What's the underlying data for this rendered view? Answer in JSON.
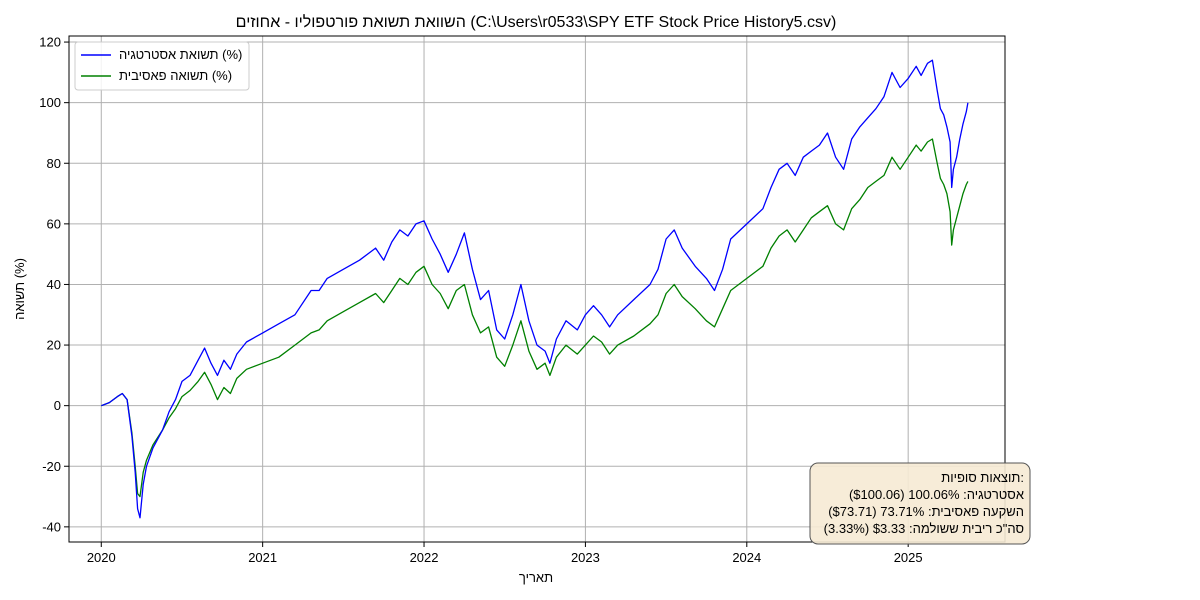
{
  "chart_data": {
    "type": "line",
    "title": "השוואת תשואת פורטפוליו - אחוזים (C:\\Users\\r0533\\SPY ETF Stock Price History5.csv)",
    "xlabel": "תאריך",
    "ylabel": "תשואה (%)",
    "xlim": [
      2019.8,
      2025.6
    ],
    "ylim": [
      -45,
      122
    ],
    "x_ticks": [
      {
        "value": 2020,
        "label": "2020"
      },
      {
        "value": 2021,
        "label": "2021"
      },
      {
        "value": 2022,
        "label": "2022"
      },
      {
        "value": 2023,
        "label": "2023"
      },
      {
        "value": 2024,
        "label": "2024"
      },
      {
        "value": 2025,
        "label": "2025"
      }
    ],
    "y_ticks": [
      {
        "value": -40,
        "label": "-40"
      },
      {
        "value": -20,
        "label": "-20"
      },
      {
        "value": 0,
        "label": "0"
      },
      {
        "value": 20,
        "label": "20"
      },
      {
        "value": 40,
        "label": "40"
      },
      {
        "value": 60,
        "label": "60"
      },
      {
        "value": 80,
        "label": "80"
      },
      {
        "value": 100,
        "label": "100"
      },
      {
        "value": 120,
        "label": "120"
      }
    ],
    "grid": true,
    "legend_position": "top-left",
    "series": [
      {
        "name": "תשואת אסטרטגיה (%)",
        "color": "#0000ff",
        "points": [
          [
            2020.0,
            0
          ],
          [
            2020.05,
            1
          ],
          [
            2020.1,
            3
          ],
          [
            2020.13,
            4
          ],
          [
            2020.16,
            2
          ],
          [
            2020.19,
            -10
          ],
          [
            2020.21,
            -22
          ],
          [
            2020.225,
            -34
          ],
          [
            2020.24,
            -37
          ],
          [
            2020.26,
            -26
          ],
          [
            2020.28,
            -20
          ],
          [
            2020.32,
            -14
          ],
          [
            2020.38,
            -8
          ],
          [
            2020.42,
            -2
          ],
          [
            2020.46,
            2
          ],
          [
            2020.5,
            8
          ],
          [
            2020.55,
            10
          ],
          [
            2020.6,
            15
          ],
          [
            2020.64,
            19
          ],
          [
            2020.68,
            14
          ],
          [
            2020.72,
            10
          ],
          [
            2020.76,
            15
          ],
          [
            2020.8,
            12
          ],
          [
            2020.84,
            17
          ],
          [
            2020.9,
            21
          ],
          [
            2021.0,
            24
          ],
          [
            2021.1,
            27
          ],
          [
            2021.2,
            30
          ],
          [
            2021.3,
            38
          ],
          [
            2021.35,
            38
          ],
          [
            2021.4,
            42
          ],
          [
            2021.5,
            45
          ],
          [
            2021.6,
            48
          ],
          [
            2021.7,
            52
          ],
          [
            2021.75,
            48
          ],
          [
            2021.8,
            54
          ],
          [
            2021.85,
            58
          ],
          [
            2021.9,
            56
          ],
          [
            2021.95,
            60
          ],
          [
            2022.0,
            61
          ],
          [
            2022.05,
            55
          ],
          [
            2022.1,
            50
          ],
          [
            2022.15,
            44
          ],
          [
            2022.2,
            50
          ],
          [
            2022.25,
            57
          ],
          [
            2022.3,
            45
          ],
          [
            2022.35,
            35
          ],
          [
            2022.4,
            38
          ],
          [
            2022.45,
            25
          ],
          [
            2022.5,
            22
          ],
          [
            2022.55,
            30
          ],
          [
            2022.6,
            40
          ],
          [
            2022.65,
            28
          ],
          [
            2022.7,
            20
          ],
          [
            2022.75,
            18
          ],
          [
            2022.78,
            14
          ],
          [
            2022.82,
            22
          ],
          [
            2022.88,
            28
          ],
          [
            2022.95,
            25
          ],
          [
            2023.0,
            30
          ],
          [
            2023.05,
            33
          ],
          [
            2023.1,
            30
          ],
          [
            2023.15,
            26
          ],
          [
            2023.2,
            30
          ],
          [
            2023.3,
            35
          ],
          [
            2023.4,
            40
          ],
          [
            2023.45,
            45
          ],
          [
            2023.5,
            55
          ],
          [
            2023.55,
            58
          ],
          [
            2023.6,
            52
          ],
          [
            2023.68,
            46
          ],
          [
            2023.75,
            42
          ],
          [
            2023.8,
            38
          ],
          [
            2023.85,
            45
          ],
          [
            2023.9,
            55
          ],
          [
            2024.0,
            60
          ],
          [
            2024.1,
            65
          ],
          [
            2024.15,
            72
          ],
          [
            2024.2,
            78
          ],
          [
            2024.25,
            80
          ],
          [
            2024.3,
            76
          ],
          [
            2024.35,
            82
          ],
          [
            2024.4,
            84
          ],
          [
            2024.45,
            86
          ],
          [
            2024.5,
            90
          ],
          [
            2024.55,
            82
          ],
          [
            2024.6,
            78
          ],
          [
            2024.65,
            88
          ],
          [
            2024.7,
            92
          ],
          [
            2024.75,
            95
          ],
          [
            2024.8,
            98
          ],
          [
            2024.85,
            102
          ],
          [
            2024.9,
            110
          ],
          [
            2024.95,
            105
          ],
          [
            2025.0,
            108
          ],
          [
            2025.05,
            112
          ],
          [
            2025.08,
            109
          ],
          [
            2025.12,
            113
          ],
          [
            2025.15,
            114
          ],
          [
            2025.18,
            104
          ],
          [
            2025.2,
            98
          ],
          [
            2025.22,
            96
          ],
          [
            2025.24,
            92
          ],
          [
            2025.26,
            87
          ],
          [
            2025.27,
            72
          ],
          [
            2025.28,
            78
          ],
          [
            2025.3,
            82
          ],
          [
            2025.32,
            88
          ],
          [
            2025.34,
            93
          ],
          [
            2025.36,
            97
          ],
          [
            2025.37,
            100
          ]
        ]
      },
      {
        "name": "תשואה פאסיבית (%)",
        "color": "#008000",
        "points": [
          [
            2020.0,
            0
          ],
          [
            2020.05,
            1
          ],
          [
            2020.1,
            3
          ],
          [
            2020.13,
            4
          ],
          [
            2020.16,
            2
          ],
          [
            2020.19,
            -9
          ],
          [
            2020.21,
            -20
          ],
          [
            2020.225,
            -29
          ],
          [
            2020.24,
            -30
          ],
          [
            2020.26,
            -22
          ],
          [
            2020.28,
            -18
          ],
          [
            2020.32,
            -13
          ],
          [
            2020.38,
            -8
          ],
          [
            2020.42,
            -4
          ],
          [
            2020.46,
            -1
          ],
          [
            2020.5,
            3
          ],
          [
            2020.55,
            5
          ],
          [
            2020.6,
            8
          ],
          [
            2020.64,
            11
          ],
          [
            2020.68,
            7
          ],
          [
            2020.72,
            2
          ],
          [
            2020.76,
            6
          ],
          [
            2020.8,
            4
          ],
          [
            2020.84,
            9
          ],
          [
            2020.9,
            12
          ],
          [
            2021.0,
            14
          ],
          [
            2021.1,
            16
          ],
          [
            2021.2,
            20
          ],
          [
            2021.3,
            24
          ],
          [
            2021.35,
            25
          ],
          [
            2021.4,
            28
          ],
          [
            2021.5,
            31
          ],
          [
            2021.6,
            34
          ],
          [
            2021.7,
            37
          ],
          [
            2021.75,
            34
          ],
          [
            2021.8,
            38
          ],
          [
            2021.85,
            42
          ],
          [
            2021.9,
            40
          ],
          [
            2021.95,
            44
          ],
          [
            2022.0,
            46
          ],
          [
            2022.05,
            40
          ],
          [
            2022.1,
            37
          ],
          [
            2022.15,
            32
          ],
          [
            2022.2,
            38
          ],
          [
            2022.25,
            40
          ],
          [
            2022.3,
            30
          ],
          [
            2022.35,
            24
          ],
          [
            2022.4,
            26
          ],
          [
            2022.45,
            16
          ],
          [
            2022.5,
            13
          ],
          [
            2022.55,
            20
          ],
          [
            2022.6,
            28
          ],
          [
            2022.65,
            18
          ],
          [
            2022.7,
            12
          ],
          [
            2022.75,
            14
          ],
          [
            2022.78,
            10
          ],
          [
            2022.82,
            16
          ],
          [
            2022.88,
            20
          ],
          [
            2022.95,
            17
          ],
          [
            2023.0,
            20
          ],
          [
            2023.05,
            23
          ],
          [
            2023.1,
            21
          ],
          [
            2023.15,
            17
          ],
          [
            2023.2,
            20
          ],
          [
            2023.3,
            23
          ],
          [
            2023.4,
            27
          ],
          [
            2023.45,
            30
          ],
          [
            2023.5,
            37
          ],
          [
            2023.55,
            40
          ],
          [
            2023.6,
            36
          ],
          [
            2023.68,
            32
          ],
          [
            2023.75,
            28
          ],
          [
            2023.8,
            26
          ],
          [
            2023.85,
            32
          ],
          [
            2023.9,
            38
          ],
          [
            2024.0,
            42
          ],
          [
            2024.1,
            46
          ],
          [
            2024.15,
            52
          ],
          [
            2024.2,
            56
          ],
          [
            2024.25,
            58
          ],
          [
            2024.3,
            54
          ],
          [
            2024.35,
            58
          ],
          [
            2024.4,
            62
          ],
          [
            2024.45,
            64
          ],
          [
            2024.5,
            66
          ],
          [
            2024.55,
            60
          ],
          [
            2024.6,
            58
          ],
          [
            2024.65,
            65
          ],
          [
            2024.7,
            68
          ],
          [
            2024.75,
            72
          ],
          [
            2024.8,
            74
          ],
          [
            2024.85,
            76
          ],
          [
            2024.9,
            82
          ],
          [
            2024.95,
            78
          ],
          [
            2025.0,
            82
          ],
          [
            2025.05,
            86
          ],
          [
            2025.08,
            84
          ],
          [
            2025.12,
            87
          ],
          [
            2025.15,
            88
          ],
          [
            2025.18,
            80
          ],
          [
            2025.2,
            75
          ],
          [
            2025.22,
            73
          ],
          [
            2025.24,
            70
          ],
          [
            2025.26,
            64
          ],
          [
            2025.27,
            53
          ],
          [
            2025.28,
            58
          ],
          [
            2025.3,
            62
          ],
          [
            2025.32,
            66
          ],
          [
            2025.34,
            70
          ],
          [
            2025.36,
            73
          ],
          [
            2025.37,
            74
          ]
        ]
      }
    ],
    "results_box": {
      "lines": [
        "תוצאות סופיות:",
        "אסטרטגיה: 100.06% ($100.06)",
        "השקעה פאסיבית: 73.71% ($73.71)",
        "סה\"כ ריבית ששולמה: $3.33 (3.33%)"
      ],
      "background": "#f6ead4"
    }
  }
}
